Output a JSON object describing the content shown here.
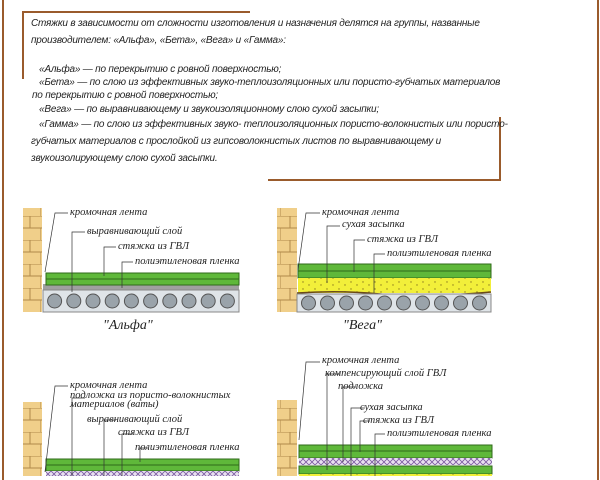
{
  "intro": {
    "line1": "Стяжки в зависимости от сложности изготовления и назначения делятся на группы, названные",
    "line2": "производителем: «Альфа», «Бета», «Вега» и «Гамма»:",
    "alfa": "«Альфа» — по перекрытию с ровной поверхностью;",
    "beta1": "«Бета» — по слою из эффективных звуко-теплоизоляционных или пористо-губчатых материалов",
    "beta2": "по перекрытию с ровной поверхностью;",
    "vega": "«Вега» — по выравнивающему и звукоизоляционному слою сухой засыпки;",
    "gamma1": "«Гамма» — по слою из эффективных звуко- теплоизоляционных пористо-волокнистых или пористо-",
    "gamma2": "губчатых материалов с прослойкой из гипсоволокнистых листов по выравнивающему и",
    "gamma3": "звукоизолирующему слою сухой засыпки."
  },
  "diagrams": {
    "alfa": {
      "caption": "\"Альфа\"",
      "labels": [
        "кромочная лента",
        "выравнивающий слой",
        "стяжка из ГВЛ",
        "полиэтиленовая пленка"
      ]
    },
    "vega": {
      "caption": "\"Вега\"",
      "labels": [
        "кромочная лента",
        "сухая засыпка",
        "стяжка из ГВЛ",
        "полиэтиленовая пленка"
      ]
    },
    "beta": {
      "labels": [
        "кромочная лента",
        "подложка из пористо-волокнистых",
        "материалов (ваты)",
        "выравнивающий слой",
        "стяжка из ГВЛ",
        "полиэтиленовая пленка"
      ]
    },
    "gamma": {
      "labels": [
        "кромочная лента",
        "компенсирующий слой ГВЛ",
        "подложка",
        "сухая засыпка",
        "стяжка из ГВЛ",
        "полиэтиленовая пленка"
      ]
    }
  },
  "colors": {
    "frame": "#9a5b2c",
    "board": "#5fb83a",
    "fill": "#f2ef3a",
    "brick": "#f0cf8a",
    "slab": "#dfe4e8"
  }
}
